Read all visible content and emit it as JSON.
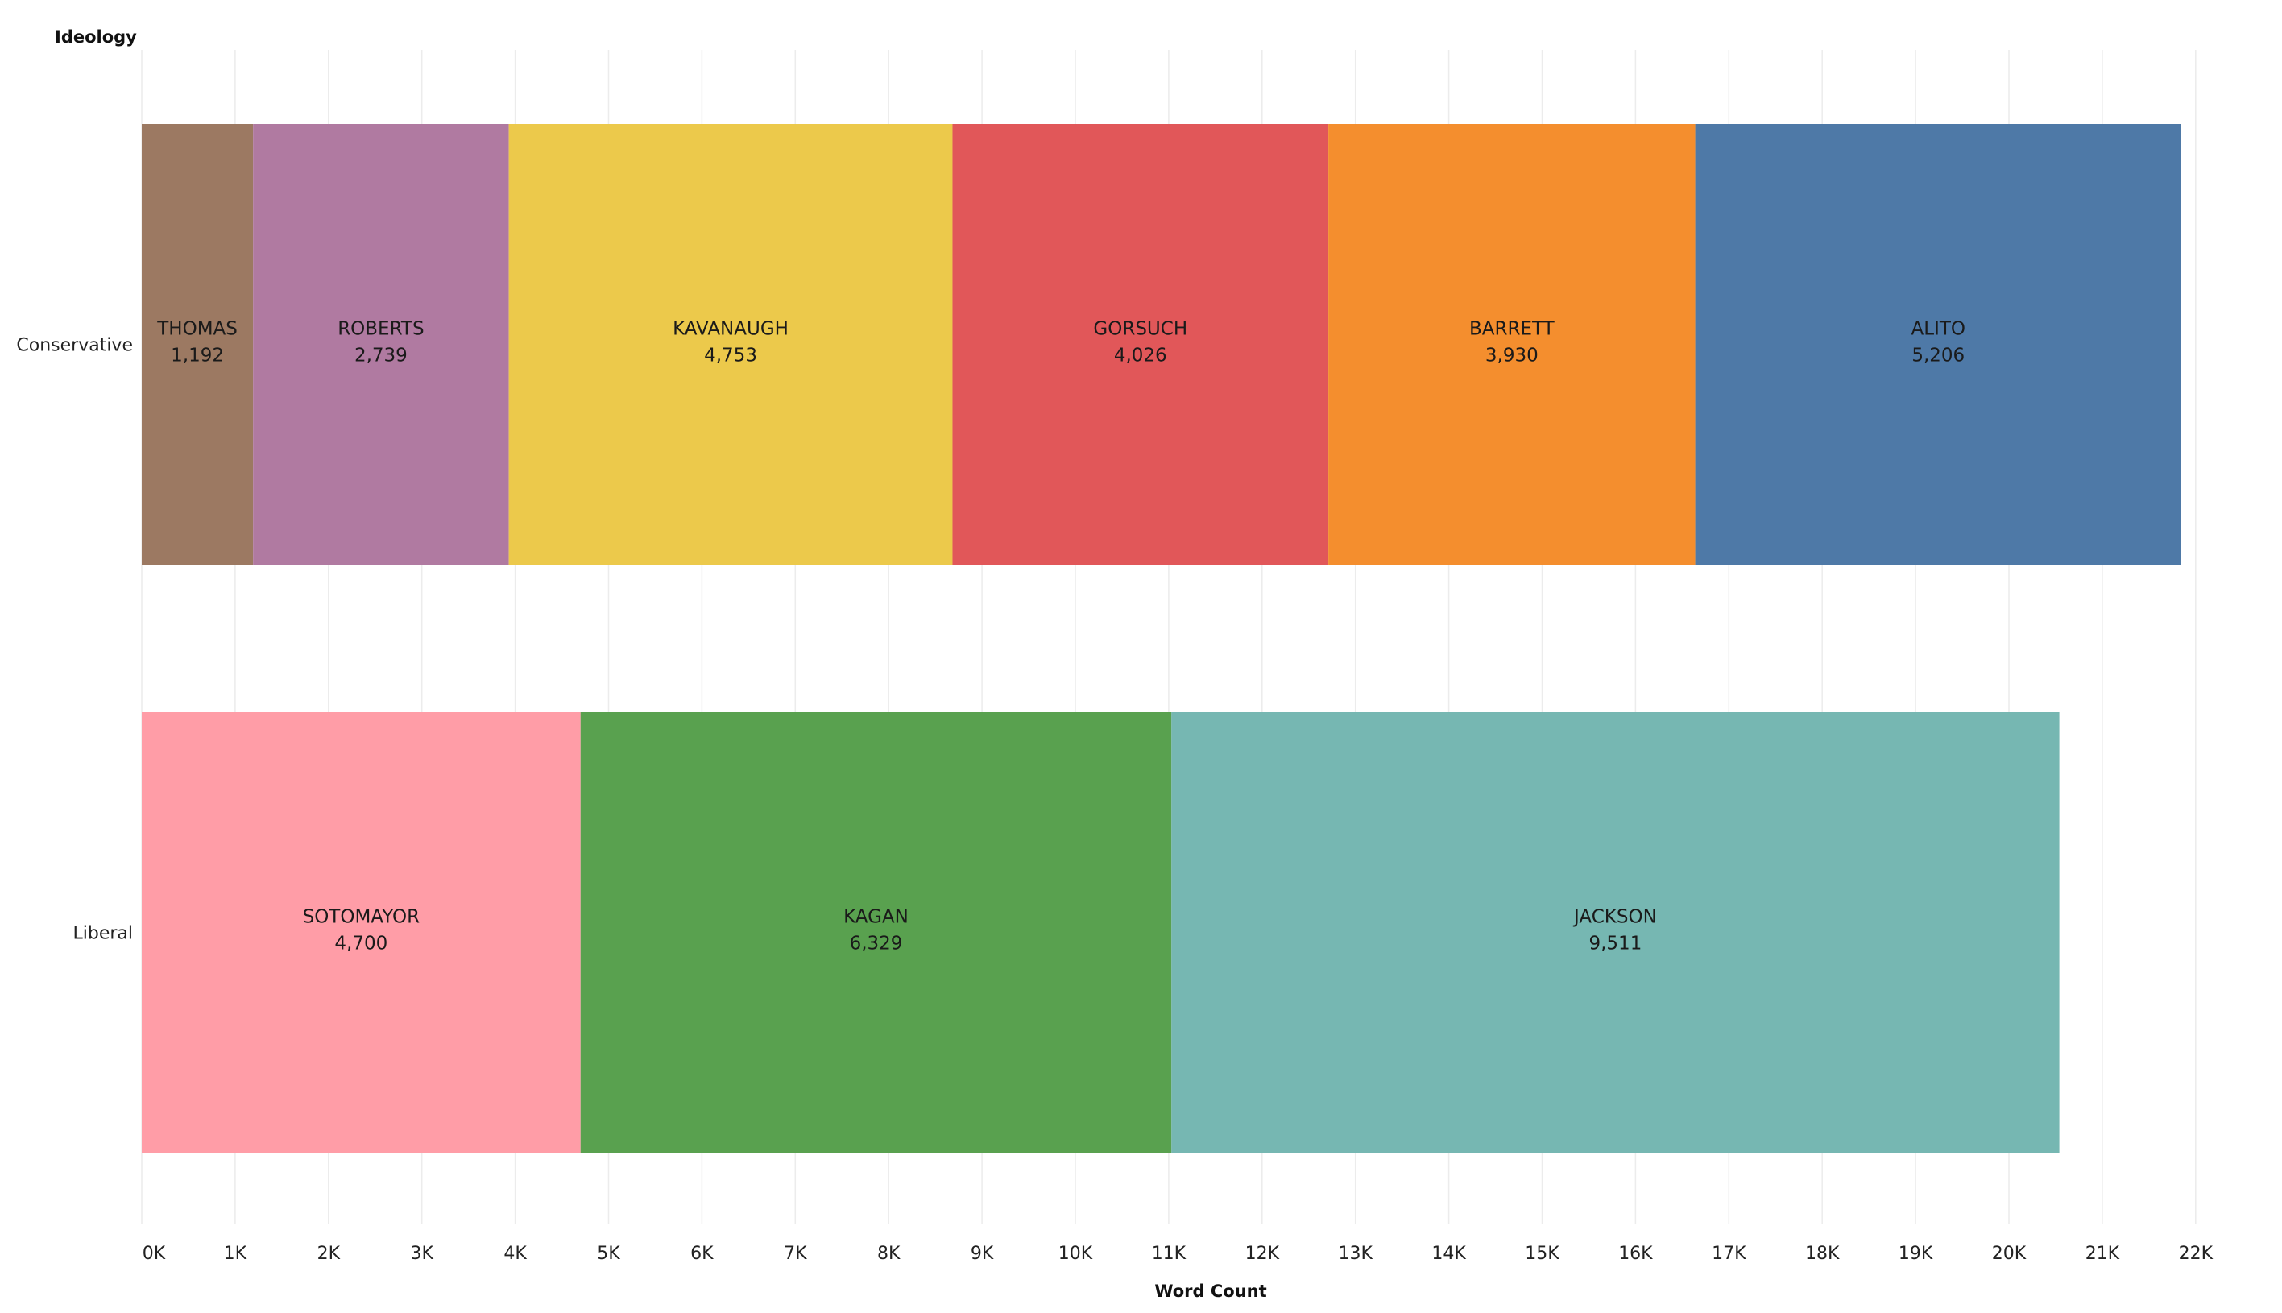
{
  "chart_data": {
    "type": "bar",
    "orientation": "horizontal",
    "stacked": true,
    "title": "",
    "row_header": "Ideology",
    "xlabel": "Word Count",
    "xlim": [
      0,
      23000
    ],
    "x_ticks": [
      0,
      1000,
      2000,
      3000,
      4000,
      5000,
      6000,
      7000,
      8000,
      9000,
      10000,
      11000,
      12000,
      13000,
      14000,
      15000,
      16000,
      17000,
      18000,
      19000,
      20000,
      21000,
      22000
    ],
    "x_tick_labels": [
      "0K",
      "1K",
      "2K",
      "3K",
      "4K",
      "5K",
      "6K",
      "7K",
      "8K",
      "9K",
      "10K",
      "11K",
      "12K",
      "13K",
      "14K",
      "15K",
      "16K",
      "17K",
      "18K",
      "19K",
      "20K",
      "21K",
      "22K"
    ],
    "grid": "vertical",
    "legend": "none",
    "categories": [
      "Conservative",
      "Liberal"
    ],
    "rows": [
      {
        "category": "Conservative",
        "segments": [
          {
            "name": "THOMAS",
            "value": 1192,
            "value_label": "1,192",
            "color": "#9c7962"
          },
          {
            "name": "ROBERTS",
            "value": 2739,
            "value_label": "2,739",
            "color": "#b07aa1"
          },
          {
            "name": "KAVANAUGH",
            "value": 4753,
            "value_label": "4,753",
            "color": "#ecc94b"
          },
          {
            "name": "GORSUCH",
            "value": 4026,
            "value_label": "4,026",
            "color": "#e15759"
          },
          {
            "name": "BARRETT",
            "value": 3930,
            "value_label": "3,930",
            "color": "#f48e2e"
          },
          {
            "name": "ALITO",
            "value": 5206,
            "value_label": "5,206",
            "color": "#4e79a7"
          }
        ]
      },
      {
        "category": "Liberal",
        "segments": [
          {
            "name": "SOTOMAYOR",
            "value": 4700,
            "value_label": "4,700",
            "color": "#ff9da7"
          },
          {
            "name": "KAGAN",
            "value": 6329,
            "value_label": "6,329",
            "color": "#59a14f"
          },
          {
            "name": "JACKSON",
            "value": 9511,
            "value_label": "9,511",
            "color": "#76b7b2"
          }
        ]
      }
    ]
  }
}
